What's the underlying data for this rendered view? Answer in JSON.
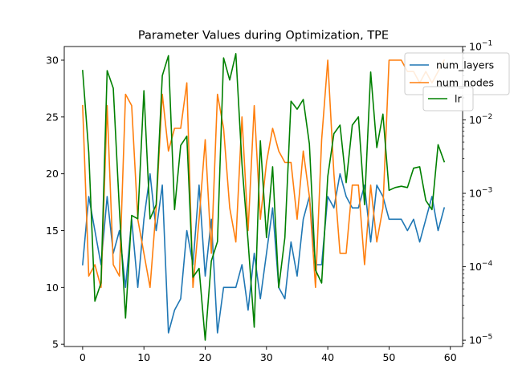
{
  "chart_data": {
    "type": "line",
    "title": "Parameter Values during Optimization, TPE",
    "xlabel": "",
    "ylabel": "",
    "xlim": [
      -3,
      62
    ],
    "ylim_left": [
      4.8,
      31.2
    ],
    "ylim_right_log": [
      8.2e-06,
      0.1
    ],
    "x_ticks": [
      0,
      10,
      20,
      30,
      40,
      50,
      60
    ],
    "y_ticks_left": [
      5,
      10,
      15,
      20,
      25,
      30
    ],
    "y_ticks_right": [
      {
        "value": 1e-05,
        "base": "10",
        "exp": "−5"
      },
      {
        "value": 0.0001,
        "base": "10",
        "exp": "−4"
      },
      {
        "value": 0.001,
        "base": "10",
        "exp": "−3"
      },
      {
        "value": 0.01,
        "base": "10",
        "exp": "−2"
      },
      {
        "value": 0.1,
        "base": "10",
        "exp": "−1"
      }
    ],
    "x": [
      0,
      1,
      2,
      3,
      4,
      5,
      6,
      7,
      8,
      9,
      10,
      11,
      12,
      13,
      14,
      15,
      16,
      17,
      18,
      19,
      20,
      21,
      22,
      23,
      24,
      25,
      26,
      27,
      28,
      29,
      30,
      31,
      32,
      33,
      34,
      35,
      36,
      37,
      38,
      39,
      40,
      41,
      42,
      43,
      44,
      45,
      46,
      47,
      48,
      49,
      50,
      51,
      52,
      53,
      54,
      55,
      56,
      57,
      58,
      59
    ],
    "series": [
      {
        "name": "num_layers",
        "axis": "left",
        "color": "#1f77b4",
        "values": [
          12,
          18,
          15,
          12,
          18,
          13,
          15,
          10,
          16,
          10,
          16,
          20,
          15,
          19,
          6,
          8,
          9,
          15,
          12,
          19,
          11,
          16,
          6,
          10,
          10,
          10,
          12,
          8,
          13,
          9,
          13,
          17,
          10,
          9,
          14,
          11,
          16,
          18,
          12,
          12,
          18,
          17,
          20,
          18,
          17,
          17,
          19,
          14,
          19,
          18,
          16,
          16,
          16,
          15,
          16,
          14,
          16,
          18,
          15,
          17
        ]
      },
      {
        "name": "num_nodes",
        "axis": "left",
        "color": "#ff7f0e",
        "values": [
          26,
          11,
          12,
          10,
          26,
          12,
          11,
          27,
          26,
          16,
          13,
          10,
          17,
          27,
          22,
          24,
          24,
          28,
          10,
          16,
          23,
          13,
          27,
          24,
          17,
          14,
          25,
          15,
          26,
          16,
          21,
          24,
          22,
          21,
          21,
          16,
          22,
          18,
          10,
          23,
          30,
          20,
          13,
          13,
          19,
          19,
          12,
          19,
          14,
          17,
          30,
          30,
          30,
          29,
          29,
          28,
          29,
          28,
          29,
          30
        ]
      },
      {
        "name": "lr",
        "axis": "right",
        "color": "#008000",
        "values": [
          0.047,
          0.0036,
          3.4e-05,
          6e-05,
          0.047,
          0.027,
          0.0006,
          2e-05,
          0.0005,
          0.00045,
          0.025,
          0.00045,
          0.0007,
          0.04,
          0.075,
          0.0006,
          0.0045,
          0.006,
          7.2e-05,
          9.5e-05,
          1e-05,
          0.00012,
          0.00022,
          0.07,
          0.035,
          0.08,
          0.0025,
          0.00022,
          1.5e-05,
          0.0052,
          0.00025,
          0.0023,
          5.2e-05,
          0.00025,
          0.018,
          0.014,
          0.019,
          0.0047,
          9e-05,
          6e-05,
          0.0017,
          0.0065,
          0.0085,
          0.0014,
          0.0085,
          0.011,
          0.0007,
          0.045,
          0.0042,
          0.012,
          0.0011,
          0.0012,
          0.00125,
          0.0012,
          0.0022,
          0.0023,
          0.0008,
          0.0006,
          0.0046,
          0.0027
        ]
      }
    ],
    "legend_left": [
      "num_layers",
      "num_nodes"
    ],
    "legend_right": [
      "lr"
    ],
    "legend_placement": "top-right",
    "grid": false
  }
}
